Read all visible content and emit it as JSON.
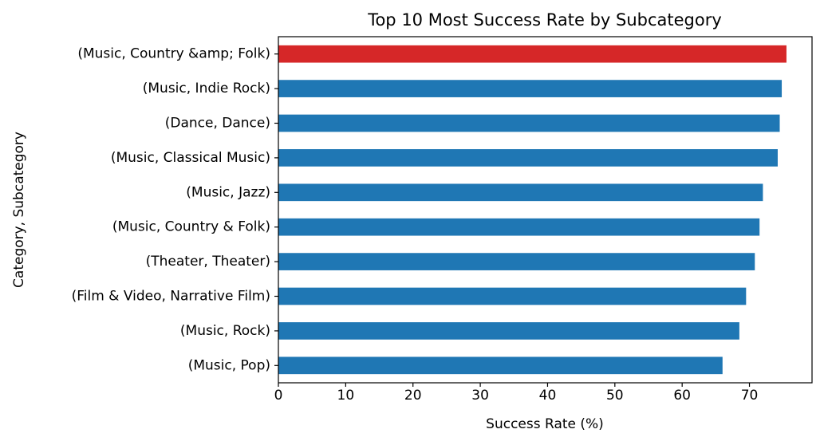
{
  "chart_data": {
    "type": "bar",
    "orientation": "horizontal",
    "title": "Top 10 Most Success Rate by Subcategory",
    "xlabel": "Success Rate (%)",
    "ylabel": "Category, Subcategory",
    "xlim": [
      0,
      79.3
    ],
    "xticks": [
      0,
      10,
      20,
      30,
      40,
      50,
      60,
      70
    ],
    "grid": false,
    "legend": "none",
    "categories": [
      "(Music, Country &amp; Folk)",
      "(Music, Indie Rock)",
      "(Dance, Dance)",
      "(Music, Classical Music)",
      "(Music, Jazz)",
      "(Music, Country & Folk)",
      "(Theater, Theater)",
      "(Film & Video, Narrative Film)",
      "(Music, Rock)",
      "(Music, Pop)"
    ],
    "values": [
      75.5,
      74.8,
      74.5,
      74.2,
      72.0,
      71.5,
      70.8,
      69.5,
      68.5,
      66.0
    ],
    "highlight_index": 0,
    "colors": {
      "bar": "#1f77b4",
      "highlight": "#d62728",
      "axis": "#000000"
    }
  }
}
